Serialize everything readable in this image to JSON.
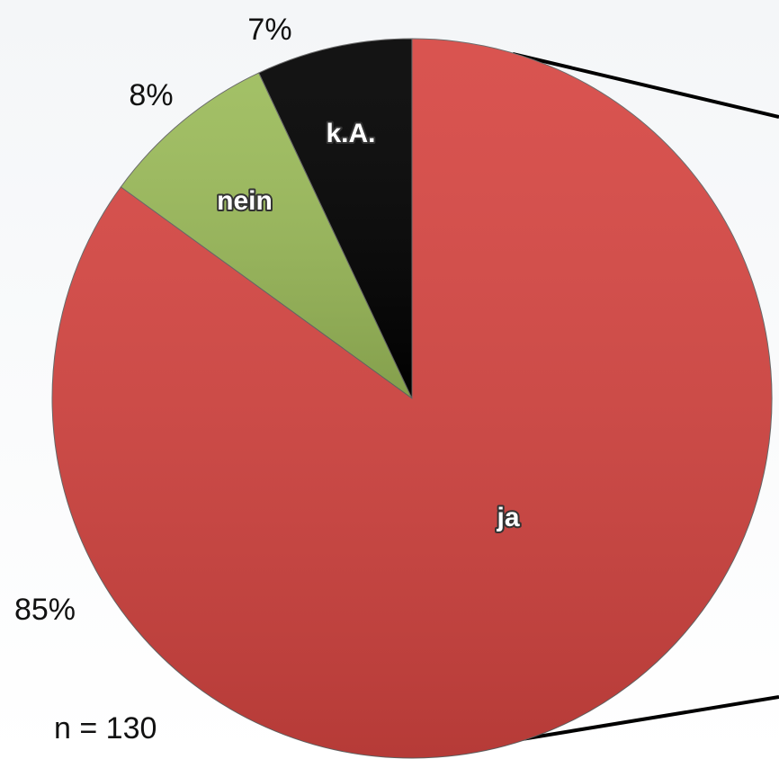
{
  "chart_data": {
    "type": "pie",
    "categories": [
      "ja",
      "nein",
      "k.A."
    ],
    "values": [
      85,
      8,
      7
    ],
    "value_labels": [
      "85%",
      "8%",
      "7%"
    ],
    "colors": [
      "#d64541",
      "#9bbb59",
      "#000000"
    ],
    "start_angle": 0,
    "direction": "clockwise",
    "annotation": "n = 130"
  }
}
